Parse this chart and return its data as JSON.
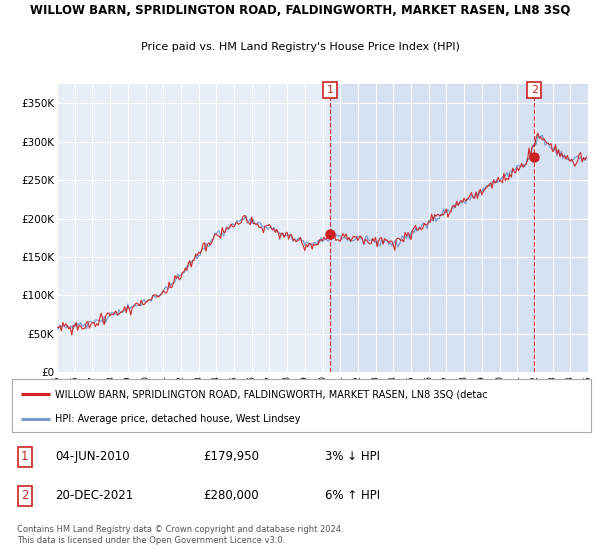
{
  "title": "WILLOW BARN, SPRIDLINGTON ROAD, FALDINGWORTH, MARKET RASEN, LN8 3SQ",
  "subtitle": "Price paid vs. HM Land Registry's House Price Index (HPI)",
  "legend_line1": "WILLOW BARN, SPRIDLINGTON ROAD, FALDINGWORTH, MARKET RASEN, LN8 3SQ (detac",
  "legend_line2": "HPI: Average price, detached house, West Lindsey",
  "annotation1_date": "04-JUN-2010",
  "annotation1_price": "£179,950",
  "annotation1_hpi": "3% ↓ HPI",
  "annotation1_year": 2010.42,
  "annotation1_value": 179950,
  "annotation2_date": "20-DEC-2021",
  "annotation2_price": "£280,000",
  "annotation2_hpi": "6% ↑ HPI",
  "annotation2_year": 2021.96,
  "annotation2_value": 280000,
  "ylabel_ticks": [
    "£0",
    "£50K",
    "£100K",
    "£150K",
    "£200K",
    "£250K",
    "£300K",
    "£350K"
  ],
  "ytick_values": [
    0,
    50000,
    100000,
    150000,
    200000,
    250000,
    300000,
    350000
  ],
  "ylim": [
    0,
    375000
  ],
  "background_color": "#e8eef5",
  "red_line_color": "#cc2222",
  "blue_line_color": "#7799cc",
  "footer": "Contains HM Land Registry data © Crown copyright and database right 2024.\nThis data is licensed under the Open Government Licence v3.0.",
  "xstart": 1995,
  "xend": 2025
}
